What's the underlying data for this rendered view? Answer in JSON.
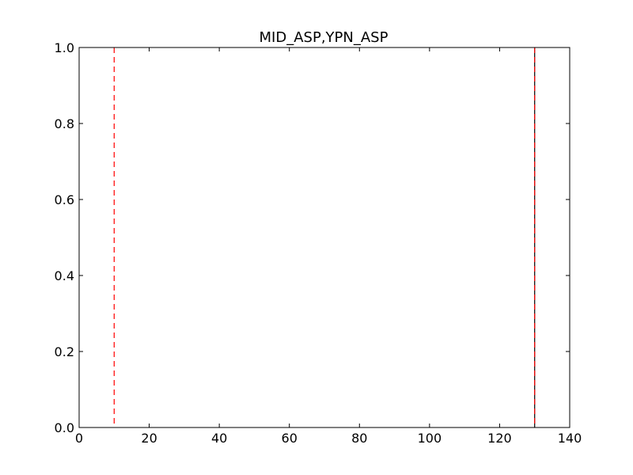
{
  "chart_data": {
    "type": "line",
    "title": "MID_ASP,YPN_ASP",
    "xlabel": "",
    "ylabel": "",
    "xlim": [
      0,
      140
    ],
    "ylim": [
      0.0,
      1.0
    ],
    "x_ticks": [
      0,
      20,
      40,
      60,
      80,
      100,
      120,
      140
    ],
    "x_tick_labels": [
      "0",
      "20",
      "40",
      "60",
      "80",
      "100",
      "120",
      "140"
    ],
    "y_ticks": [
      0.0,
      0.2,
      0.4,
      0.6,
      0.8,
      1.0
    ],
    "y_tick_labels": [
      "0.0",
      "0.2",
      "0.4",
      "0.6",
      "0.8",
      "1.0"
    ],
    "grid": false,
    "vlines": [
      {
        "x": 10,
        "style": "dashed",
        "color": "#ff0000"
      },
      {
        "x": 130,
        "style": "solid",
        "color": "#000000"
      },
      {
        "x": 130,
        "style": "dashed",
        "color": "#ff0000"
      }
    ]
  }
}
